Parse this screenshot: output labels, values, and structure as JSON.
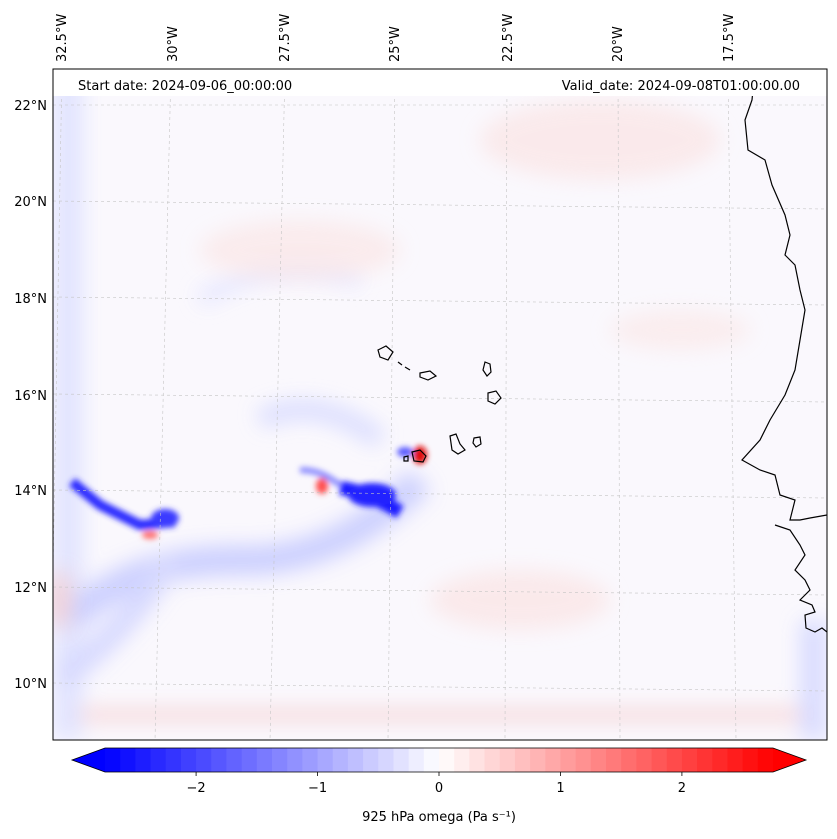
{
  "header": {
    "start_label": "Start date: 2024-09-06_00:00:00",
    "valid_label": "Valid_date: 2024-09-08T01:00:00.00"
  },
  "map": {
    "lon_labels": [
      "32.5°W",
      "30°W",
      "27.5°W",
      "25°W",
      "22.5°W",
      "20°W",
      "17.5°W"
    ],
    "lat_labels": [
      "22°N",
      "20°N",
      "18°N",
      "16°N",
      "14°N",
      "12°N",
      "10°N"
    ],
    "extent": {
      "lon_min": -33.0,
      "lon_max": -15.8,
      "lat_min": 8.9,
      "lat_max": 22.8
    }
  },
  "colorbar": {
    "label": "925 hPa omega (Pa s⁻¹)",
    "ticks": [
      "−2",
      "−1",
      "0",
      "1",
      "2"
    ],
    "tick_values": [
      -2,
      -1,
      0,
      1,
      2
    ],
    "vmin": -2.75,
    "vmax": 2.75,
    "cmap": "bwr",
    "extend": "both",
    "colors": {
      "negative": "#0000ff",
      "zero": "#ffffff",
      "positive": "#ff0000"
    }
  }
}
